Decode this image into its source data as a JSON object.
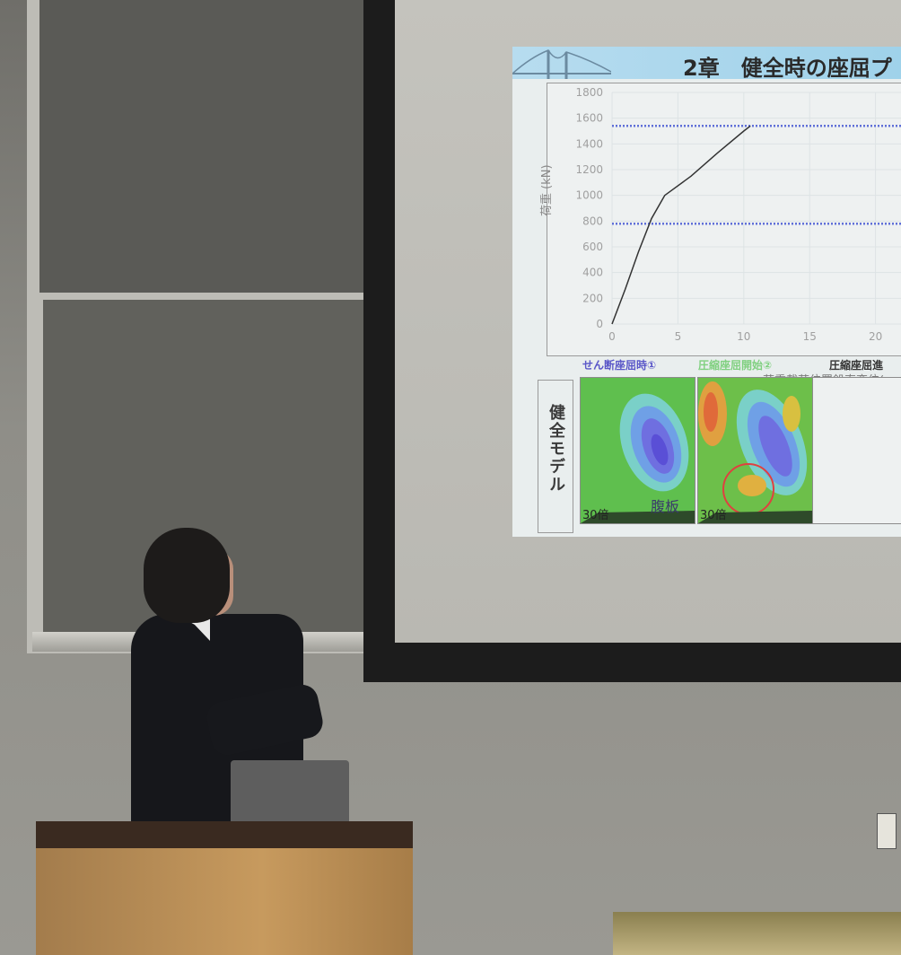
{
  "slide": {
    "title": "2章　健全時の座屈プ",
    "chart_data": {
      "type": "line",
      "ylabel": "荷重 (kN)",
      "xlabel": "荷重載荷位置鉛直変位(r",
      "y_ticks": [
        "1800",
        "1600",
        "1400",
        "1200",
        "1000",
        "800",
        "600",
        "400",
        "200",
        "0"
      ],
      "x_ticks": [
        "0",
        "5",
        "10",
        "15",
        "20"
      ],
      "ylim": [
        0,
        1800
      ],
      "series": [
        {
          "x": [
            0,
            1,
            2,
            3,
            4,
            6,
            8,
            10,
            10.5
          ],
          "y": [
            0,
            270,
            560,
            820,
            1000,
            1150,
            1330,
            1500,
            1540
          ]
        }
      ],
      "reference_lines_y": [
        1540,
        780
      ]
    },
    "model_label": "健全モデル",
    "columns": [
      {
        "heading": "せん断座屈時①",
        "color": "#5a57c8",
        "scale": "30倍",
        "note": "腹板"
      },
      {
        "heading": "圧縮座屈開始②",
        "color": "#7fd07f",
        "scale": "30倍",
        "note": ""
      },
      {
        "heading": "圧縮座屈進",
        "color": "#333333",
        "scale": "",
        "note": ""
      }
    ]
  }
}
